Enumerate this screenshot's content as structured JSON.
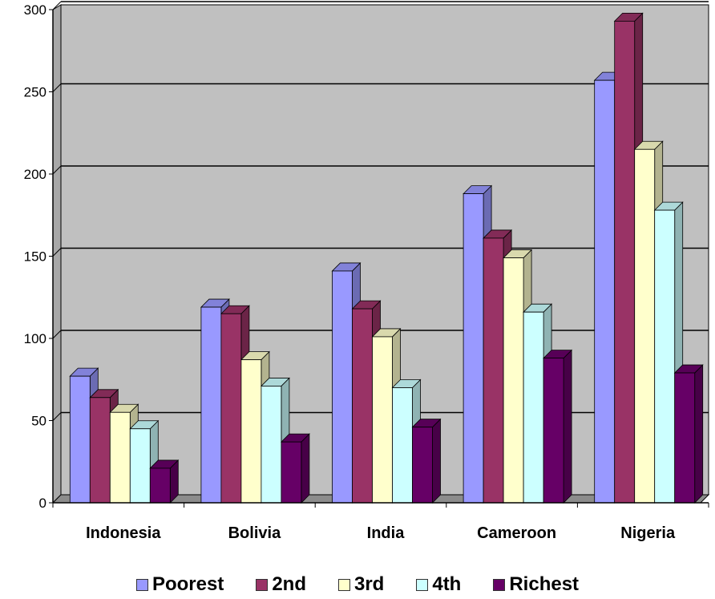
{
  "chart_data": {
    "type": "bar",
    "title": "",
    "xlabel": "",
    "ylabel": "",
    "ylim": [
      0,
      300
    ],
    "yticks": [
      0,
      50,
      100,
      150,
      200,
      250,
      300
    ],
    "grid": true,
    "legend_position": "bottom",
    "categories": [
      "Indonesia",
      "Bolivia",
      "India",
      "Cameroon",
      "Nigeria"
    ],
    "series": [
      {
        "name": "Poorest",
        "color": "#9999ff",
        "values": [
          77,
          119,
          141,
          188,
          257
        ]
      },
      {
        "name": "2nd",
        "color": "#993366",
        "values": [
          64,
          115,
          118,
          161,
          293
        ]
      },
      {
        "name": "3rd",
        "color": "#ffffcc",
        "values": [
          55,
          87,
          101,
          149,
          215
        ]
      },
      {
        "name": "4th",
        "color": "#ccffff",
        "values": [
          45,
          71,
          70,
          116,
          178
        ]
      },
      {
        "name": "Richest",
        "color": "#660066",
        "values": [
          21,
          37,
          46,
          88,
          79
        ]
      }
    ]
  },
  "legend": {
    "items": [
      {
        "label": "Poorest",
        "color": "#9999ff"
      },
      {
        "label": "2nd",
        "color": "#993366"
      },
      {
        "label": "3rd",
        "color": "#ffffcc"
      },
      {
        "label": "4th",
        "color": "#ccffff"
      },
      {
        "label": "Richest",
        "color": "#660066"
      }
    ]
  },
  "colors": {
    "plot_background": "#c0c0c0",
    "wall_side": "#a8a8a8",
    "floor": "#8c8c8c",
    "gridline": "#000000"
  }
}
